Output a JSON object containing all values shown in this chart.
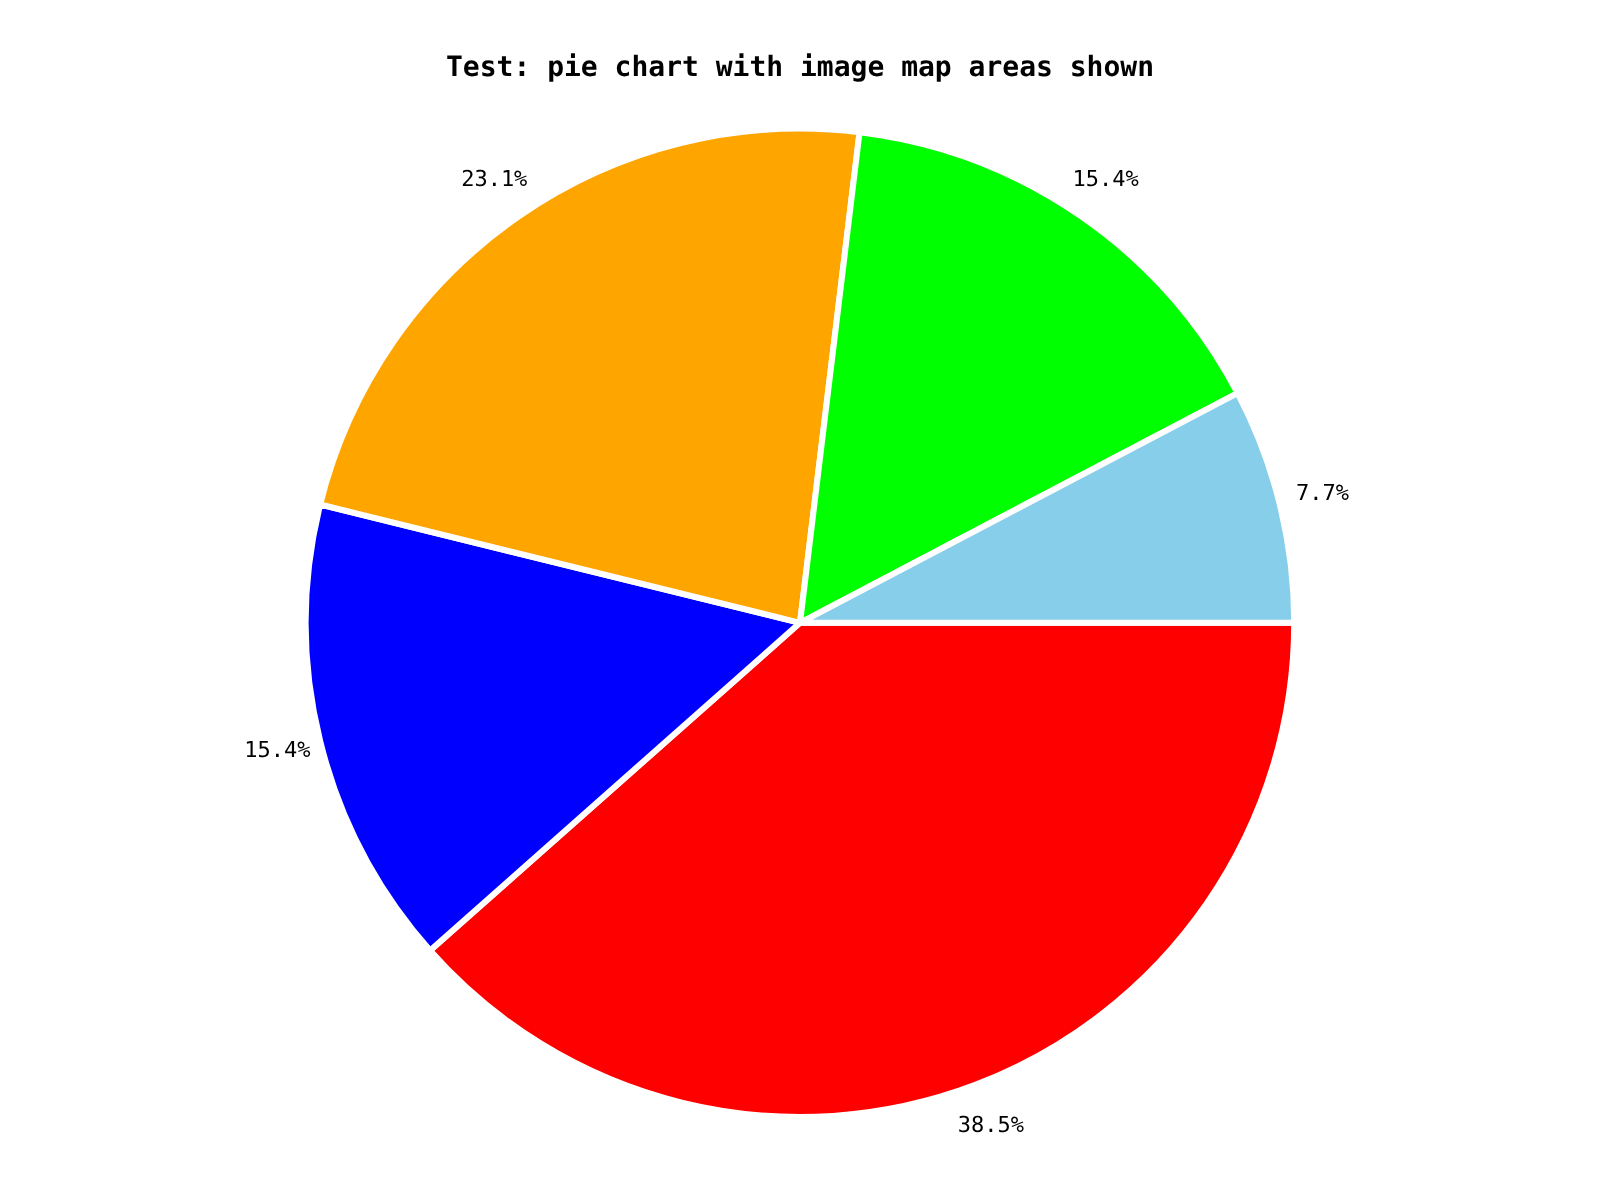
{
  "chart_data": {
    "type": "pie",
    "title": "Test: pie chart with image map areas shown",
    "categories": [
      null,
      null,
      null,
      null,
      null
    ],
    "values": [
      38.5,
      15.4,
      23.1,
      15.4,
      7.7
    ],
    "value_labels": [
      "38.5%",
      "15.4%",
      "23.1%",
      "15.4%",
      "7.7%"
    ],
    "colors": [
      "#ff0000",
      "#0000ff",
      "#ffa500",
      "#00ff00",
      "#87ceeb"
    ],
    "legend": false
  }
}
